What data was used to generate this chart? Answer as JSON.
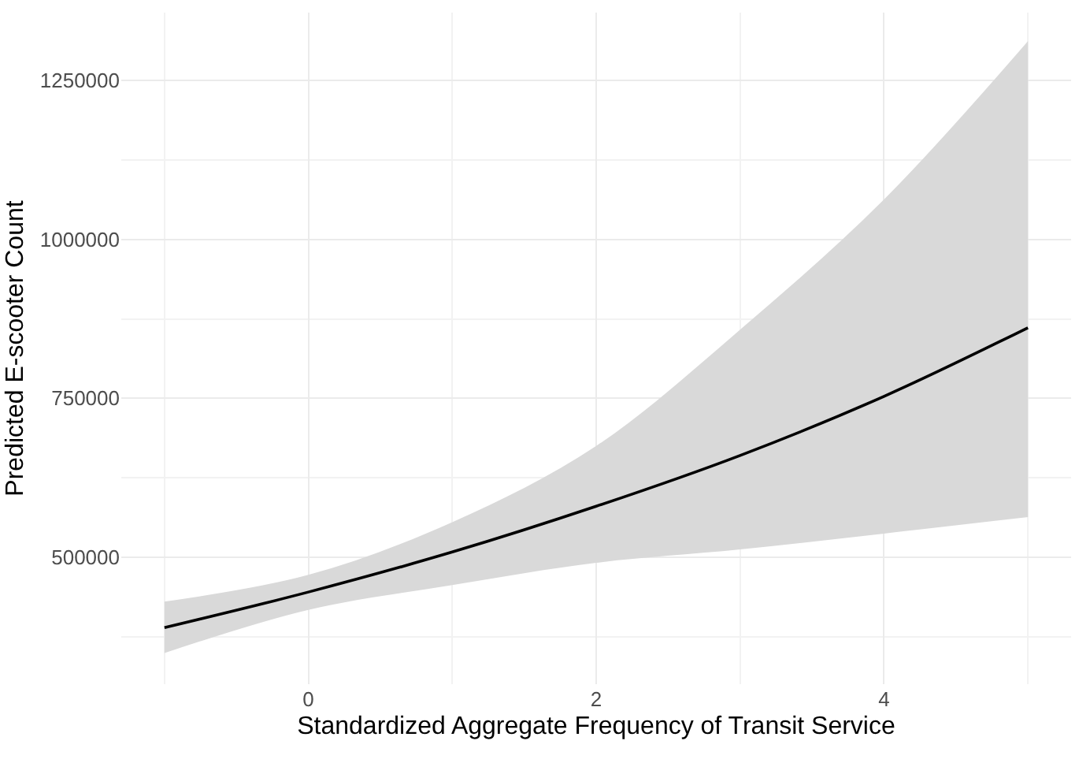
{
  "chart_data": {
    "type": "line",
    "xlabel": "Standardized Aggregate Frequency of Transit Service",
    "ylabel": "Predicted E-scooter Count",
    "x": [
      -1,
      0,
      1,
      2,
      3,
      4,
      5
    ],
    "series": [
      {
        "color": "#000000",
        "values": [
          389000,
          445000,
          508000,
          580000,
          660000,
          753000,
          861000
        ],
        "lower": [
          349000,
          417000,
          456000,
          491000,
          512000,
          537000,
          563000
        ],
        "upper": [
          430000,
          472000,
          555000,
          675000,
          858000,
          1063000,
          1312000
        ]
      }
    ],
    "xlim": [
      -1.3,
      5.3
    ],
    "xticks": [
      0,
      2,
      4
    ],
    "ylim": [
      300000,
      1357000
    ],
    "yticks": [
      500000,
      750000,
      1000000,
      1250000
    ],
    "grid": true,
    "marker": "none",
    "line_style": "solid"
  }
}
